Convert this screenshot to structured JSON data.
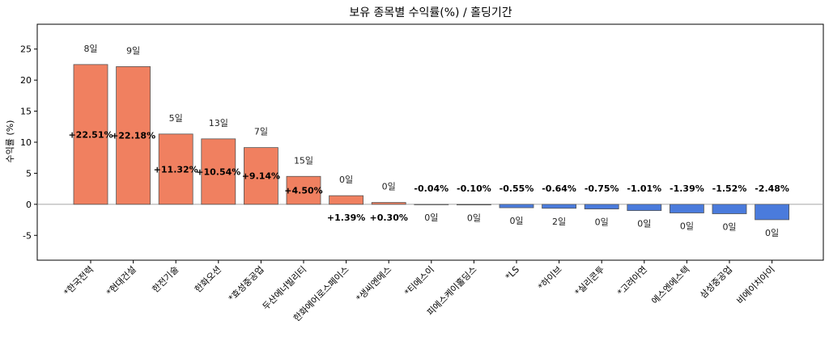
{
  "chart_data": {
    "type": "bar",
    "title": "보유 종목별 수익률(%) / 홀딩기간",
    "xlabel": "",
    "ylabel": "수익률 (%)",
    "ylim": [
      -9,
      29
    ],
    "yticks": [
      -5,
      0,
      5,
      10,
      15,
      20,
      25
    ],
    "grid": false,
    "colors": {
      "positive": "#f08060",
      "negative": "#4a7bdc",
      "edge": "#555555"
    },
    "categories": [
      "*한국전력",
      "*현대건설",
      "한전기술",
      "한화오션",
      "*효성중공업",
      "두산에너빌리티",
      "한화에어로스페이스",
      "*생씨엔에스",
      "*티에스이",
      "피에스케이홀딩스",
      "*LS",
      "*하이브",
      "*실리콘투",
      "*고려아연",
      "에스엔에스텍",
      "삼성중공업",
      "비에이치아이"
    ],
    "values": [
      22.51,
      22.18,
      11.32,
      10.54,
      9.14,
      4.5,
      1.39,
      0.3,
      -0.04,
      -0.1,
      -0.55,
      -0.64,
      -0.75,
      -1.01,
      -1.39,
      -1.52,
      -2.48
    ],
    "value_labels": [
      "+22.51%",
      "+22.18%",
      "+11.32%",
      "+10.54%",
      "+9.14%",
      "+4.50%",
      "+1.39%",
      "+0.30%",
      "-0.04%",
      "-0.10%",
      "-0.55%",
      "-0.64%",
      "-0.75%",
      "-1.01%",
      "-1.39%",
      "-1.52%",
      "-2.48%"
    ],
    "holding_days": [
      "8일",
      "9일",
      "5일",
      "13일",
      "7일",
      "15일",
      "0일",
      "0일",
      "0일",
      "0일",
      "0일",
      "2일",
      "0일",
      "0일",
      "0일",
      "0일",
      "0일"
    ]
  }
}
